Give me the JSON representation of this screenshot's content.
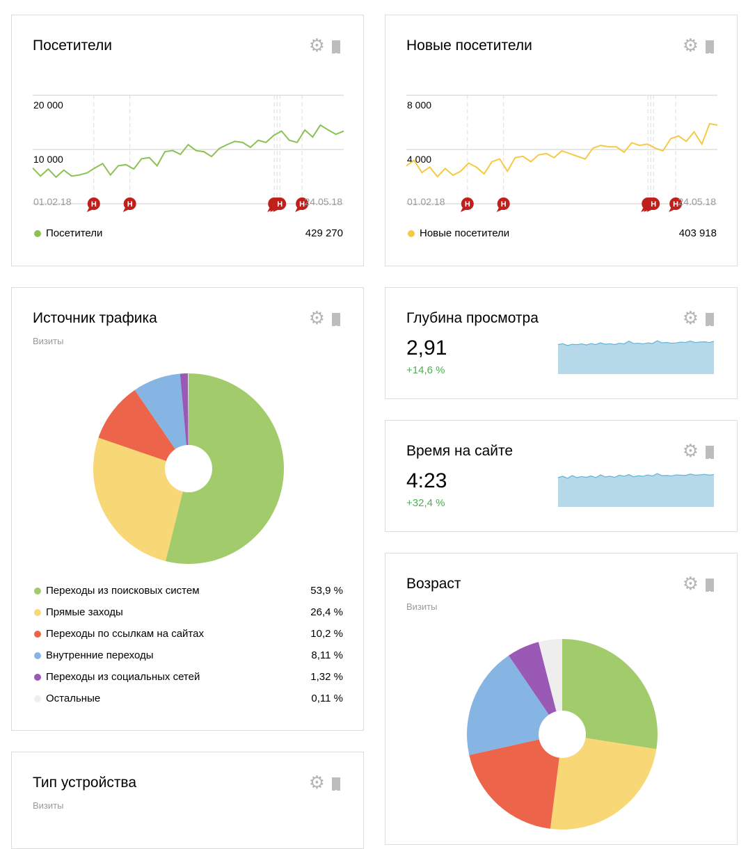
{
  "widgets": {
    "visitors": {
      "title": "Посетители",
      "legend_label": "Посетители",
      "total": "429 270",
      "color": "#8cc152",
      "chart_data": {
        "type": "line",
        "x_start": "01.02.18",
        "x_end": "24.05.18",
        "y_ticks": [
          "20 000",
          "10 000"
        ],
        "y_tick_values": [
          20000,
          10000
        ],
        "ylim": [
          0,
          20000
        ],
        "grid": true,
        "series": [
          {
            "name": "Посетители",
            "values": [
              6600,
              5100,
              6400,
              4900,
              6200,
              5100,
              5300,
              5700,
              6600,
              7400,
              5300,
              7000,
              7200,
              6400,
              8300,
              8500,
              7000,
              9600,
              9800,
              9100,
              10900,
              9800,
              9600,
              8700,
              10200,
              10900,
              11500,
              11300,
              10400,
              11700,
              11300,
              12600,
              13400,
              11700,
              11300,
              13600,
              12300,
              14500,
              13600,
              12800,
              13400
            ]
          }
        ],
        "annotations": [
          {
            "date": "23.02.18",
            "label": "Н"
          },
          {
            "date": "08.03.18",
            "label": "Н"
          },
          {
            "date": "29.04.18",
            "label": "Н"
          },
          {
            "date": "30.04.18",
            "label": "Н"
          },
          {
            "date": "01.05.18",
            "label": "Н"
          },
          {
            "date": "09.05.18",
            "label": "Н"
          }
        ]
      }
    },
    "new_visitors": {
      "title": "Новые посетители",
      "legend_label": "Новые посетители",
      "total": "403 918",
      "color": "#f6c945",
      "chart_data": {
        "type": "line",
        "x_start": "01.02.18",
        "x_end": "24.05.18",
        "y_ticks": [
          "8 000",
          "4 000"
        ],
        "y_tick_values": [
          8000,
          4000
        ],
        "ylim": [
          0,
          8000
        ],
        "grid": true,
        "series": [
          {
            "name": "Новые посетители",
            "values": [
              2800,
              3200,
              2300,
              2700,
              2000,
              2600,
              2100,
              2400,
              3000,
              2700,
              2200,
              3100,
              3300,
              2400,
              3400,
              3500,
              3100,
              3600,
              3700,
              3400,
              3900,
              3700,
              3500,
              3300,
              4100,
              4300,
              4200,
              4200,
              3800,
              4500,
              4300,
              4400,
              4100,
              3900,
              4800,
              5000,
              4600,
              5300,
              4400,
              5900,
              5800
            ]
          }
        ],
        "annotations": [
          {
            "date": "23.02.18",
            "label": "Н"
          },
          {
            "date": "08.03.18",
            "label": "Н"
          },
          {
            "date": "29.04.18",
            "label": "Н"
          },
          {
            "date": "30.04.18",
            "label": "Н"
          },
          {
            "date": "01.05.18",
            "label": "Н"
          },
          {
            "date": "09.05.18",
            "label": "Н"
          }
        ]
      }
    },
    "traffic": {
      "title": "Источник трафика",
      "subtitle": "Визиты",
      "chart_data": {
        "type": "pie",
        "slices": [
          {
            "label": "Переходы из поисковых систем",
            "value": 53.9,
            "display": "53,9 %",
            "color": "#a2cb6c"
          },
          {
            "label": "Прямые заходы",
            "value": 26.4,
            "display": "26,4 %",
            "color": "#f8d876"
          },
          {
            "label": "Переходы по ссылкам на сайтах",
            "value": 10.2,
            "display": "10,2 %",
            "color": "#ec654b"
          },
          {
            "label": "Внутренние переходы",
            "value": 8.11,
            "display": "8,11 %",
            "color": "#86b5e3"
          },
          {
            "label": "Переходы из социальных сетей",
            "value": 1.32,
            "display": "1,32 %",
            "color": "#9b59b6"
          },
          {
            "label": "Остальные",
            "value": 0.11,
            "display": "0,11 %",
            "color": "#eeeeee"
          }
        ]
      }
    },
    "depth": {
      "title": "Глубина просмотра",
      "value": "2,91",
      "delta": "+14,6 %",
      "spark": [
        2.7,
        2.75,
        2.65,
        2.72,
        2.7,
        2.74,
        2.68,
        2.76,
        2.7,
        2.8,
        2.72,
        2.75,
        2.7,
        2.78,
        2.74,
        2.9,
        2.76,
        2.78,
        2.74,
        2.8,
        2.76,
        2.92,
        2.8,
        2.82,
        2.78,
        2.8,
        2.84,
        2.82,
        2.9,
        2.82,
        2.84,
        2.86,
        2.82,
        2.88
      ]
    },
    "time": {
      "title": "Время на сайте",
      "value": "4:23",
      "delta": "+32,4 %",
      "spark": [
        3.6,
        3.7,
        3.55,
        3.75,
        3.6,
        3.68,
        3.62,
        3.72,
        3.6,
        3.8,
        3.65,
        3.7,
        3.62,
        3.78,
        3.7,
        3.82,
        3.66,
        3.74,
        3.7,
        3.8,
        3.72,
        3.9,
        3.74,
        3.76,
        3.72,
        3.8,
        3.78,
        3.76,
        3.86,
        3.78,
        3.8,
        3.84,
        3.78,
        3.82
      ]
    },
    "age": {
      "title": "Возраст",
      "subtitle": "Визиты",
      "chart_data": {
        "type": "pie",
        "slices": [
          {
            "value": 27.5,
            "color": "#a2cb6c"
          },
          {
            "value": 24.5,
            "color": "#f8d876"
          },
          {
            "value": 19.5,
            "color": "#ec654b"
          },
          {
            "value": 19.0,
            "color": "#86b5e3"
          },
          {
            "value": 5.5,
            "color": "#9b59b6"
          },
          {
            "value": 4.0,
            "color": "#eeeeee"
          }
        ]
      }
    },
    "device": {
      "title": "Тип устройства",
      "subtitle": "Визиты"
    }
  },
  "icons": {
    "settings": "gear-icon",
    "drag": "drag-handle-icon"
  }
}
